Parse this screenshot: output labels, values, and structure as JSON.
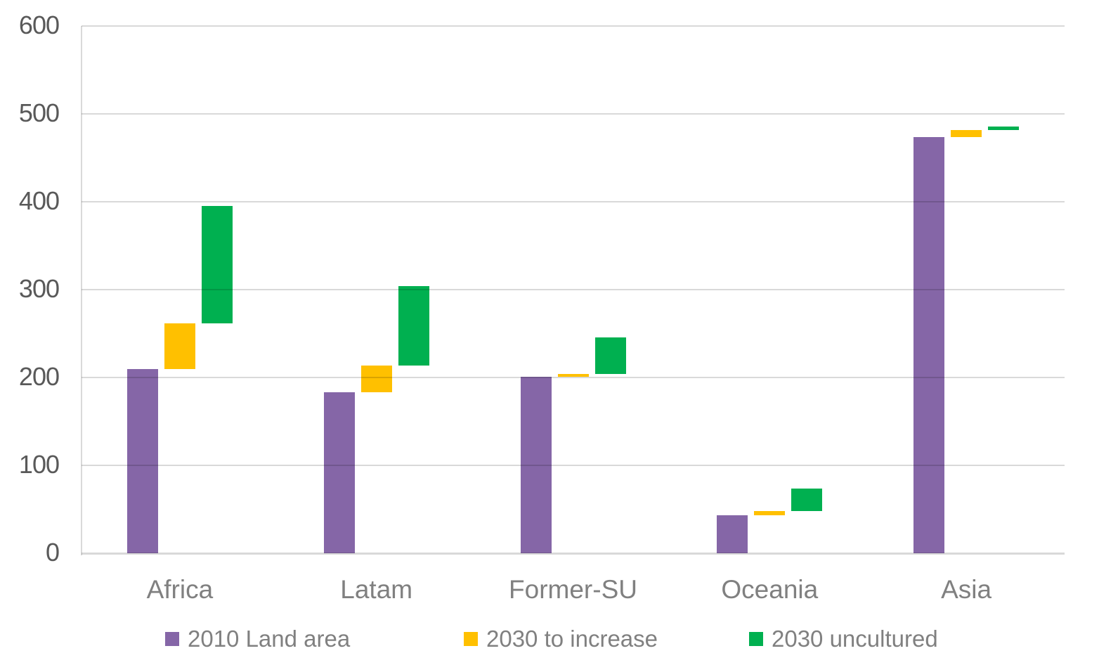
{
  "chart_data": {
    "type": "bar",
    "subtype": "floating-waterfall",
    "title": "",
    "xlabel": "",
    "ylabel": "",
    "categories": [
      "Africa",
      "Latam",
      "Former-SU",
      "Oceania",
      "Asia"
    ],
    "series": [
      {
        "name": "2010 Land area",
        "color": "#8566A7",
        "ranges": [
          [
            0,
            210
          ],
          [
            0,
            183
          ],
          [
            0,
            201
          ],
          [
            0,
            43
          ],
          [
            0,
            474
          ]
        ]
      },
      {
        "name": "2030 to increase",
        "color": "#FFC000",
        "ranges": [
          [
            210,
            262
          ],
          [
            183,
            214
          ],
          [
            201,
            204
          ],
          [
            43,
            48
          ],
          [
            474,
            482
          ]
        ]
      },
      {
        "name": "2030 uncultured",
        "color": "#00B050",
        "ranges": [
          [
            262,
            395
          ],
          [
            214,
            304
          ],
          [
            204,
            246
          ],
          [
            48,
            74
          ],
          [
            482,
            486
          ]
        ]
      }
    ],
    "ylim": [
      0,
      600
    ],
    "yticks": [
      0,
      100,
      200,
      300,
      400,
      500,
      600
    ],
    "grid": true,
    "legend_position": "bottom"
  },
  "colors": {
    "background": "#FFFFFF",
    "gridline": "#D9D9D9",
    "axis_line": "#D9D9D9",
    "y_tick_label": "#595959",
    "x_tick_label": "#808080",
    "legend_text": "#808080"
  }
}
